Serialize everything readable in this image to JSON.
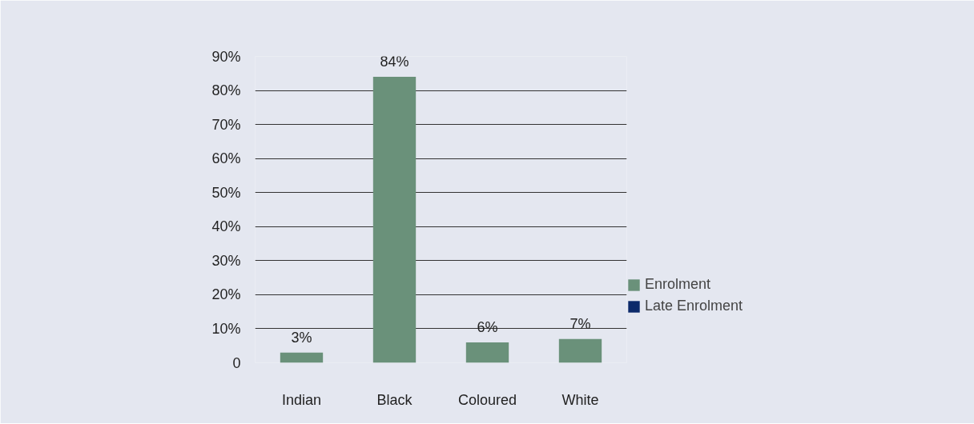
{
  "chart_data": {
    "type": "bar",
    "categories": [
      "Indian",
      "Black",
      "Coloured",
      "White"
    ],
    "series": [
      {
        "name": "Enrolment",
        "color": "#6a917a",
        "values": [
          3,
          84,
          6,
          7
        ]
      },
      {
        "name": "Late Enrolment",
        "color": "#0c2a6a",
        "values": [
          null,
          null,
          null,
          null
        ]
      }
    ],
    "ylim": [
      0,
      90
    ],
    "yticks": [
      {
        "value": 0,
        "label": "0"
      },
      {
        "value": 10,
        "label": "10%"
      },
      {
        "value": 20,
        "label": "20%"
      },
      {
        "value": 30,
        "label": "30%"
      },
      {
        "value": 40,
        "label": "40%"
      },
      {
        "value": 50,
        "label": "50%"
      },
      {
        "value": 60,
        "label": "60%"
      },
      {
        "value": 70,
        "label": "70%"
      },
      {
        "value": 80,
        "label": "80%"
      },
      {
        "value": 90,
        "label": "90%"
      }
    ],
    "value_labels": [
      "3%",
      "84%",
      "6%",
      "7%"
    ],
    "grid": "y",
    "legend": "right"
  }
}
